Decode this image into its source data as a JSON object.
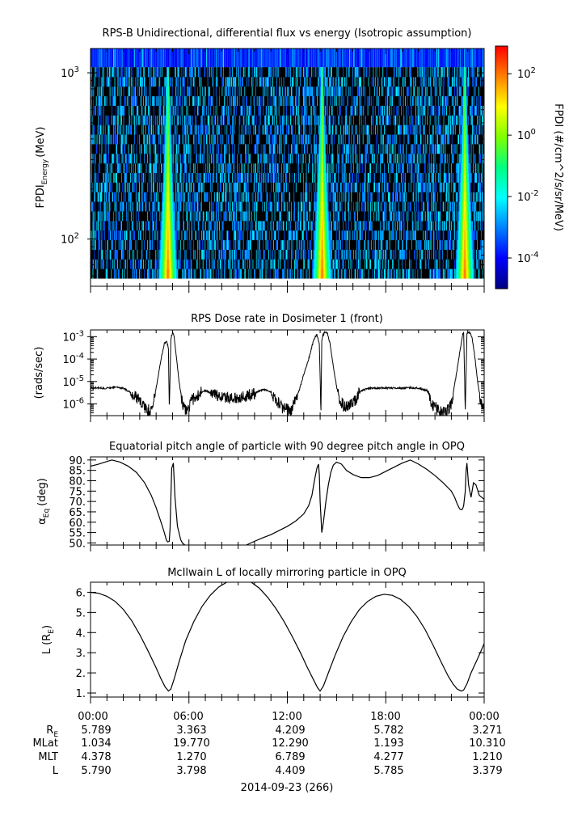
{
  "chart_data": [
    {
      "type": "heatmap",
      "title": "RPS-B  Unidirectional, differential flux vs energy (Isotropic assumption)",
      "ylabel": "FPDI",
      "ylabel_sub": "Energy",
      "ylabel_unit": "(MeV)",
      "y_scale": "log",
      "ylim": [
        52,
        1400
      ],
      "y_ticks": [
        {
          "value": 100,
          "base": "10",
          "exp": "2"
        },
        {
          "value": 1000,
          "base": "10",
          "exp": "3"
        }
      ],
      "xlim_hours": [
        0,
        24
      ],
      "peak_times_hours": [
        4.7,
        14.1,
        22.8
      ],
      "colorbar": {
        "label": "FPDI (#/cm^2/s/sr/MeV)",
        "log_range": [
          -5,
          2.9
        ],
        "ticks": [
          {
            "base": "10",
            "exp": "2",
            "value": 2
          },
          {
            "base": "10",
            "exp": "0",
            "value": 0
          },
          {
            "base": "10",
            "exp": "-2",
            "value": -2
          },
          {
            "base": "10",
            "exp": "-4",
            "value": -4
          }
        ],
        "colors": [
          "#00007f",
          "#0000ff",
          "#0080ff",
          "#00ffff",
          "#00ff80",
          "#80ff00",
          "#ffff00",
          "#ff8000",
          "#ff0000"
        ]
      }
    },
    {
      "type": "line",
      "title": "RPS  Dose rate in Dosimeter 1 (front)",
      "ylabel": "(rads/sec)",
      "y_scale": "log",
      "ylim": [
        3e-07,
        0.002
      ],
      "y_ticks": [
        {
          "value": 1e-06,
          "base": "10",
          "exp": "-6"
        },
        {
          "value": 1e-05,
          "base": "10",
          "exp": "-5"
        },
        {
          "value": 0.0001,
          "base": "10",
          "exp": "-4"
        },
        {
          "value": 0.001,
          "base": "10",
          "exp": "-3"
        }
      ],
      "xlim_hours": [
        0,
        24
      ],
      "x": [
        0,
        0.5,
        1,
        1.5,
        2,
        2.5,
        3,
        3.4,
        3.7,
        4.0,
        4.3,
        4.5,
        4.65,
        4.75,
        4.8,
        4.9,
        5.0,
        5.1,
        5.2,
        5.4,
        5.6,
        5.8,
        6.0,
        6.2,
        6.5,
        7,
        7.5,
        8,
        8.5,
        9,
        9.5,
        10,
        10.5,
        11,
        11.2,
        11.5,
        11.8,
        12.2,
        12.6,
        13.0,
        13.3,
        13.6,
        13.8,
        13.95,
        14.05,
        14.1,
        14.15,
        14.3,
        14.45,
        14.6,
        14.8,
        15.0,
        15.2,
        15.5,
        16,
        16.5,
        17,
        17.5,
        18,
        18.5,
        19,
        19.5,
        20,
        20.5,
        20.8,
        21.1,
        21.4,
        21.7,
        22.0,
        22.3,
        22.55,
        22.7,
        22.75,
        22.85,
        22.95,
        23.1,
        23.25,
        23.4,
        23.6,
        23.8,
        24
      ],
      "y": [
        5e-06,
        5.2e-06,
        5e-06,
        5.5e-06,
        5e-06,
        3e-06,
        1.4e-06,
        6e-07,
        5e-07,
        5e-06,
        0.0001,
        0.0005,
        0.0006,
        0.0003,
        5e-07,
        0.0008,
        0.0016,
        0.001,
        0.0002,
        1e-05,
        1e-06,
        5e-07,
        8e-07,
        1.4e-06,
        2.5e-06,
        4e-06,
        2.8e-06,
        2.2e-06,
        1.8e-06,
        2e-06,
        2.3e-06,
        3e-06,
        4.5e-06,
        3.5e-06,
        2e-06,
        1e-06,
        6e-07,
        5e-07,
        2e-06,
        2e-05,
        0.0001,
        0.0007,
        0.0013,
        0.0005,
        5e-07,
        0.0007,
        0.0011,
        0.0016,
        0.0014,
        0.0005,
        5e-05,
        6e-06,
        1.5e-06,
        7e-07,
        1e-06,
        4e-06,
        5e-06,
        5e-06,
        5.2e-06,
        5e-06,
        5e-06,
        5.3e-06,
        5e-06,
        4e-06,
        1e-06,
        6e-07,
        5e-07,
        4e-07,
        1e-06,
        2e-05,
        0.0003,
        0.0013,
        0.0015,
        5e-07,
        0.0014,
        0.0016,
        0.001,
        0.0002,
        1e-05,
        1e-06,
        5e-07
      ]
    },
    {
      "type": "line",
      "title": "Equatorial pitch angle of particle with 90 degree pitch angle in OPQ",
      "ylabel": "α",
      "ylabel_sub": "Eq",
      "ylabel_unit": "(deg)",
      "ylim": [
        49,
        91.5
      ],
      "y_ticks": [
        50,
        55,
        60,
        65,
        70,
        75,
        80,
        85,
        90
      ],
      "y_tick_labels": [
        "50.",
        "55.",
        "60.",
        "65.",
        "70.",
        "75.",
        "80.",
        "85.",
        "90."
      ],
      "xlim_hours": [
        0,
        24
      ],
      "x": [
        0,
        0.5,
        1.0,
        1.3,
        1.8,
        2.3,
        2.8,
        3.3,
        3.7,
        4.0,
        4.3,
        4.5,
        4.62,
        4.7,
        4.8,
        4.85,
        4.9,
        4.95,
        5.05,
        5.15,
        5.3,
        5.5,
        5.6,
        5.7,
        5.75,
        null,
        9.5,
        10,
        10.5,
        11,
        11.5,
        12,
        12.5,
        13,
        13.3,
        13.5,
        13.65,
        13.8,
        13.9,
        13.95,
        14.0,
        14.1,
        14.2,
        14.35,
        14.5,
        14.65,
        14.8,
        15.0,
        15.3,
        15.6,
        16,
        16.5,
        17,
        17.5,
        18,
        18.5,
        19,
        19.5,
        20,
        20.5,
        21,
        21.5,
        22,
        22.2,
        22.35,
        22.5,
        22.6,
        22.68,
        22.75,
        22.85,
        22.9,
        22.95,
        23.05,
        23.2,
        23.35,
        23.5,
        23.7,
        24
      ],
      "y": [
        87,
        88,
        89.3,
        90,
        89,
        87,
        84,
        79,
        73,
        67,
        60,
        55,
        51.5,
        50.5,
        50.8,
        57,
        72,
        86,
        88.5,
        72,
        58,
        51.5,
        50,
        49.3,
        49,
        null,
        49,
        50.8,
        52.5,
        54,
        56,
        58,
        60.5,
        64,
        68,
        73,
        80,
        86,
        88,
        83,
        70,
        55,
        60,
        70,
        78,
        84,
        87.5,
        89,
        88,
        85,
        83,
        81.5,
        81.5,
        82.5,
        84.5,
        86.5,
        88.5,
        90,
        88,
        85.5,
        82.5,
        79,
        75,
        72,
        69,
        66.5,
        66,
        66.3,
        68,
        75,
        85,
        88.5,
        78,
        72,
        79,
        78,
        73,
        71
      ]
    },
    {
      "type": "line",
      "title": "McIlwain L of locally mirroring particle in OPQ",
      "ylabel": "L",
      "ylabel_unit": "(R",
      "ylabel_unit_sub": "E",
      "ylim": [
        0.8,
        6.5
      ],
      "y_ticks": [
        1,
        2,
        3,
        4,
        5,
        6
      ],
      "y_tick_labels": [
        "1.",
        "2.",
        "3.",
        "4.",
        "5.",
        "6."
      ],
      "xlim_hours": [
        0,
        24
      ],
      "x": [
        0,
        0.5,
        1,
        1.5,
        2,
        2.5,
        3,
        3.5,
        4,
        4.3,
        4.55,
        4.75,
        4.9,
        5.1,
        5.4,
        5.8,
        6.3,
        6.8,
        7.3,
        7.8,
        8.3,
        8.8,
        9.3,
        9.8,
        10.3,
        10.8,
        11.3,
        11.8,
        12.3,
        12.8,
        13.2,
        13.6,
        13.85,
        14.0,
        14.2,
        14.5,
        14.9,
        15.4,
        15.9,
        16.4,
        16.9,
        17.4,
        17.9,
        18.4,
        18.9,
        19.4,
        19.9,
        20.4,
        20.9,
        21.4,
        21.8,
        22.1,
        22.35,
        22.6,
        22.75,
        22.95,
        23.2,
        23.6,
        24
      ],
      "y": [
        6.0,
        5.95,
        5.8,
        5.55,
        5.15,
        4.6,
        3.9,
        3.1,
        2.25,
        1.7,
        1.3,
        1.1,
        1.2,
        1.7,
        2.55,
        3.6,
        4.55,
        5.3,
        5.85,
        6.25,
        6.5,
        6.6,
        6.6,
        6.5,
        6.2,
        5.75,
        5.2,
        4.55,
        3.8,
        3.0,
        2.3,
        1.65,
        1.25,
        1.1,
        1.35,
        2.0,
        2.85,
        3.8,
        4.55,
        5.15,
        5.55,
        5.8,
        5.9,
        5.85,
        5.65,
        5.3,
        4.8,
        4.15,
        3.35,
        2.5,
        1.85,
        1.45,
        1.2,
        1.1,
        1.15,
        1.45,
        2.0,
        2.7,
        3.45
      ]
    }
  ],
  "x_axis": {
    "tick_labels": [
      "00:00",
      "06:00",
      "12:00",
      "18:00",
      "00:00"
    ],
    "tick_hours": [
      0,
      6,
      12,
      18,
      24
    ],
    "rows": [
      {
        "label": "R",
        "label_sub": "E",
        "values": [
          "5.789",
          "3.363",
          "4.209",
          "5.782",
          "3.271"
        ]
      },
      {
        "label": "MLat",
        "values": [
          "1.034",
          "19.770",
          "12.290",
          "1.193",
          "10.310"
        ]
      },
      {
        "label": "MLT",
        "values": [
          "4.378",
          "1.270",
          "6.789",
          "4.277",
          "1.210"
        ]
      },
      {
        "label": "L",
        "values": [
          "5.790",
          "3.798",
          "4.409",
          "5.785",
          "3.379"
        ]
      }
    ],
    "date_label": "2014-09-23 (266)"
  }
}
